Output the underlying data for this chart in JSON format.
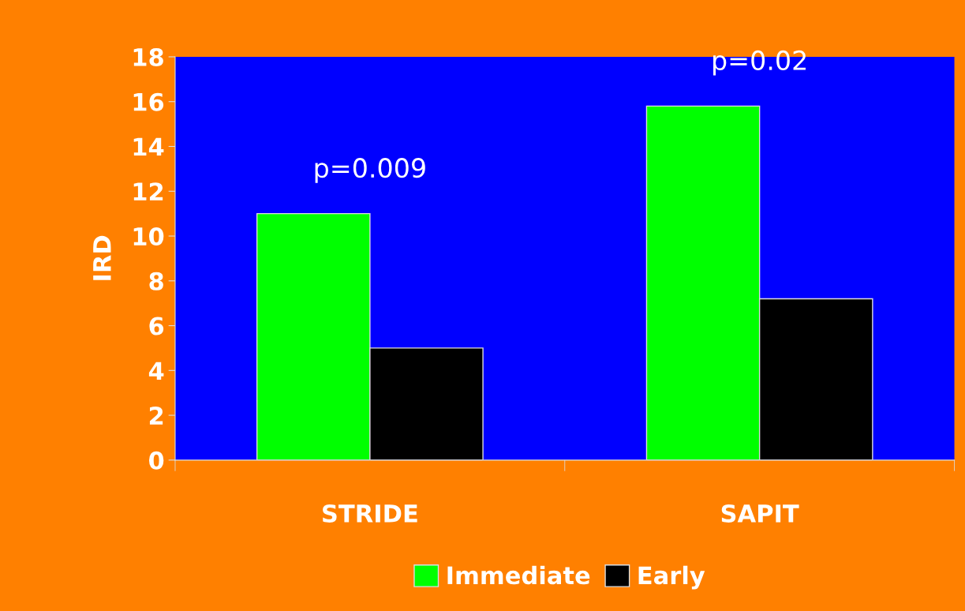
{
  "chart_data": {
    "type": "bar",
    "ylabel": "IRD",
    "categories": [
      "STRIDE",
      "SAPIT"
    ],
    "series": [
      {
        "name": "Immediate",
        "color": "#00ff00",
        "values": [
          11,
          15.8
        ]
      },
      {
        "name": "Early",
        "color": "#000000",
        "values": [
          5,
          7.2
        ]
      }
    ],
    "ylim": [
      0,
      18
    ],
    "yticks": [
      0,
      2,
      4,
      6,
      8,
      10,
      12,
      14,
      16,
      18
    ],
    "annotations": [
      "p=0.009",
      "p=0.02"
    ],
    "legend": "bottom",
    "grid": false
  }
}
